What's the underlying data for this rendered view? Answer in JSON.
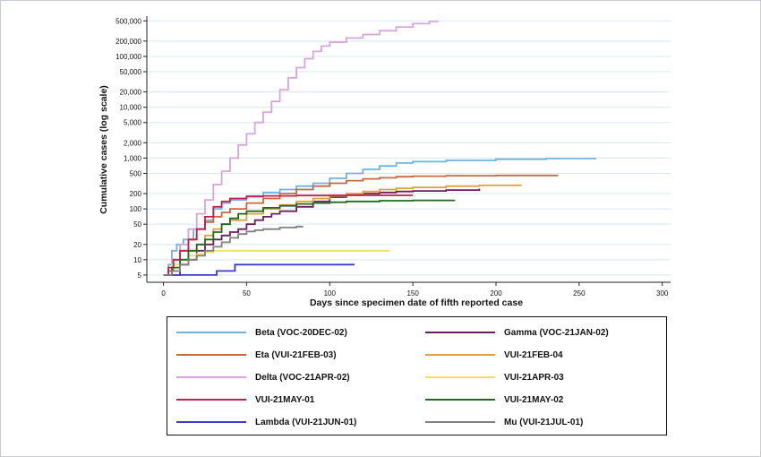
{
  "chart_data": {
    "type": "line",
    "title": "",
    "xlabel": "Days since specimen date of fifth reported case",
    "ylabel": "Cumulative cases (log scale)",
    "y_scale": "log",
    "grid": true,
    "xlim": [
      -10,
      305
    ],
    "ylim": [
      3.6,
      620000
    ],
    "x_ticks": [
      0,
      50,
      100,
      150,
      200,
      250,
      300
    ],
    "y_ticks": [
      5,
      10,
      20,
      50,
      100,
      200,
      500,
      1000,
      2000,
      5000,
      10000,
      20000,
      50000,
      100000,
      200000,
      500000
    ],
    "y_tick_labels": [
      "5",
      "10",
      "20",
      "50",
      "100",
      "200",
      "500",
      "1,000",
      "2,000",
      "5,000",
      "10,000",
      "20,000",
      "50,000",
      "100,000",
      "200,000",
      "500,000"
    ],
    "series": [
      {
        "name": "Beta (VOC-20DEC-02)",
        "color": "#6fb3e0",
        "points": [
          [
            0,
            5
          ],
          [
            3,
            8
          ],
          [
            5,
            15
          ],
          [
            8,
            20
          ],
          [
            12,
            25
          ],
          [
            18,
            40
          ],
          [
            25,
            60
          ],
          [
            30,
            100
          ],
          [
            35,
            130
          ],
          [
            40,
            150
          ],
          [
            50,
            180
          ],
          [
            60,
            210
          ],
          [
            70,
            240
          ],
          [
            80,
            280
          ],
          [
            90,
            320
          ],
          [
            100,
            400
          ],
          [
            110,
            500
          ],
          [
            120,
            600
          ],
          [
            130,
            700
          ],
          [
            140,
            800
          ],
          [
            150,
            850
          ],
          [
            170,
            900
          ],
          [
            200,
            950
          ],
          [
            230,
            980
          ],
          [
            260,
            1000
          ]
        ]
      },
      {
        "name": "Gamma (VOC-21JAN-02)",
        "color": "#6a1f5c",
        "points": [
          [
            0,
            5
          ],
          [
            5,
            5
          ],
          [
            10,
            8
          ],
          [
            15,
            10
          ],
          [
            20,
            15
          ],
          [
            25,
            20
          ],
          [
            30,
            25
          ],
          [
            35,
            30
          ],
          [
            40,
            35
          ],
          [
            45,
            40
          ],
          [
            50,
            50
          ],
          [
            55,
            60
          ],
          [
            60,
            70
          ],
          [
            65,
            80
          ],
          [
            70,
            90
          ],
          [
            80,
            110
          ],
          [
            90,
            140
          ],
          [
            100,
            170
          ],
          [
            110,
            190
          ],
          [
            120,
            200
          ],
          [
            130,
            210
          ],
          [
            140,
            220
          ],
          [
            150,
            225
          ],
          [
            170,
            235
          ],
          [
            190,
            250
          ]
        ]
      },
      {
        "name": "Eta (VUI-21FEB-03)",
        "color": "#c8683c",
        "points": [
          [
            0,
            5
          ],
          [
            3,
            6
          ],
          [
            6,
            10
          ],
          [
            10,
            15
          ],
          [
            15,
            25
          ],
          [
            20,
            40
          ],
          [
            25,
            55
          ],
          [
            30,
            70
          ],
          [
            35,
            85
          ],
          [
            40,
            100
          ],
          [
            50,
            130
          ],
          [
            60,
            160
          ],
          [
            70,
            200
          ],
          [
            80,
            240
          ],
          [
            90,
            280
          ],
          [
            100,
            320
          ],
          [
            110,
            360
          ],
          [
            120,
            390
          ],
          [
            130,
            410
          ],
          [
            140,
            430
          ],
          [
            150,
            440
          ],
          [
            170,
            450
          ],
          [
            200,
            455
          ],
          [
            237,
            460
          ]
        ]
      },
      {
        "name": "VUI-21FEB-04",
        "color": "#e0a040",
        "points": [
          [
            0,
            5
          ],
          [
            5,
            6
          ],
          [
            10,
            10
          ],
          [
            15,
            15
          ],
          [
            20,
            20
          ],
          [
            25,
            30
          ],
          [
            30,
            40
          ],
          [
            35,
            50
          ],
          [
            40,
            60
          ],
          [
            50,
            80
          ],
          [
            60,
            100
          ],
          [
            70,
            120
          ],
          [
            80,
            140
          ],
          [
            90,
            160
          ],
          [
            100,
            180
          ],
          [
            110,
            200
          ],
          [
            120,
            220
          ],
          [
            130,
            240
          ],
          [
            140,
            255
          ],
          [
            150,
            265
          ],
          [
            170,
            280
          ],
          [
            190,
            290
          ],
          [
            215,
            300
          ]
        ]
      },
      {
        "name": "Delta (VOC-21APR-02)",
        "color": "#d8a4dc",
        "points": [
          [
            0,
            5
          ],
          [
            5,
            10
          ],
          [
            10,
            20
          ],
          [
            15,
            40
          ],
          [
            20,
            80
          ],
          [
            25,
            150
          ],
          [
            30,
            300
          ],
          [
            35,
            550
          ],
          [
            40,
            1000
          ],
          [
            45,
            1800
          ],
          [
            50,
            3000
          ],
          [
            55,
            5000
          ],
          [
            60,
            8000
          ],
          [
            65,
            13000
          ],
          [
            70,
            22000
          ],
          [
            75,
            38000
          ],
          [
            80,
            60000
          ],
          [
            85,
            90000
          ],
          [
            90,
            125000
          ],
          [
            95,
            160000
          ],
          [
            100,
            190000
          ],
          [
            110,
            230000
          ],
          [
            120,
            270000
          ],
          [
            130,
            320000
          ],
          [
            140,
            380000
          ],
          [
            150,
            440000
          ],
          [
            160,
            490000
          ],
          [
            165,
            500000
          ]
        ]
      },
      {
        "name": "VUI-21APR-03",
        "color": "#f0e060",
        "points": [
          [
            0,
            5
          ],
          [
            5,
            8
          ],
          [
            10,
            10
          ],
          [
            15,
            12
          ],
          [
            20,
            13
          ],
          [
            25,
            14
          ],
          [
            30,
            15
          ],
          [
            40,
            15
          ],
          [
            60,
            15
          ],
          [
            80,
            15
          ],
          [
            100,
            15
          ],
          [
            120,
            15
          ],
          [
            136,
            15
          ]
        ]
      },
      {
        "name": "VUI-21MAY-01",
        "color": "#c81e4a",
        "points": [
          [
            0,
            5
          ],
          [
            3,
            7
          ],
          [
            6,
            10
          ],
          [
            10,
            15
          ],
          [
            15,
            25
          ],
          [
            20,
            40
          ],
          [
            25,
            70
          ],
          [
            30,
            110
          ],
          [
            35,
            140
          ],
          [
            40,
            160
          ],
          [
            50,
            175
          ],
          [
            60,
            180
          ],
          [
            80,
            183
          ],
          [
            100,
            185
          ],
          [
            120,
            185
          ],
          [
            140,
            185
          ],
          [
            150,
            185
          ]
        ]
      },
      {
        "name": "VUI-21MAY-02",
        "color": "#1e6a1e",
        "points": [
          [
            0,
            5
          ],
          [
            5,
            7
          ],
          [
            10,
            10
          ],
          [
            15,
            15
          ],
          [
            20,
            20
          ],
          [
            25,
            25
          ],
          [
            30,
            35
          ],
          [
            35,
            50
          ],
          [
            40,
            65
          ],
          [
            45,
            80
          ],
          [
            50,
            90
          ],
          [
            60,
            105
          ],
          [
            70,
            115
          ],
          [
            80,
            125
          ],
          [
            90,
            130
          ],
          [
            100,
            135
          ],
          [
            110,
            140
          ],
          [
            130,
            145
          ],
          [
            150,
            147
          ],
          [
            175,
            150
          ]
        ]
      },
      {
        "name": "Lambda (VUI-21JUN-01)",
        "color": "#3c3ccc",
        "points": [
          [
            0,
            5
          ],
          [
            10,
            5
          ],
          [
            20,
            5
          ],
          [
            30,
            5
          ],
          [
            32,
            6
          ],
          [
            40,
            6
          ],
          [
            43,
            8
          ],
          [
            60,
            8
          ],
          [
            80,
            8
          ],
          [
            100,
            8
          ],
          [
            115,
            8
          ]
        ]
      },
      {
        "name": "Mu (VUI-21JUL-01)",
        "color": "#808080",
        "points": [
          [
            0,
            5
          ],
          [
            5,
            6
          ],
          [
            10,
            8
          ],
          [
            15,
            10
          ],
          [
            20,
            12
          ],
          [
            25,
            15
          ],
          [
            30,
            18
          ],
          [
            35,
            22
          ],
          [
            40,
            27
          ],
          [
            45,
            32
          ],
          [
            50,
            36
          ],
          [
            55,
            38
          ],
          [
            60,
            40
          ],
          [
            70,
            43
          ],
          [
            80,
            45
          ],
          [
            84,
            45
          ]
        ]
      }
    ]
  }
}
